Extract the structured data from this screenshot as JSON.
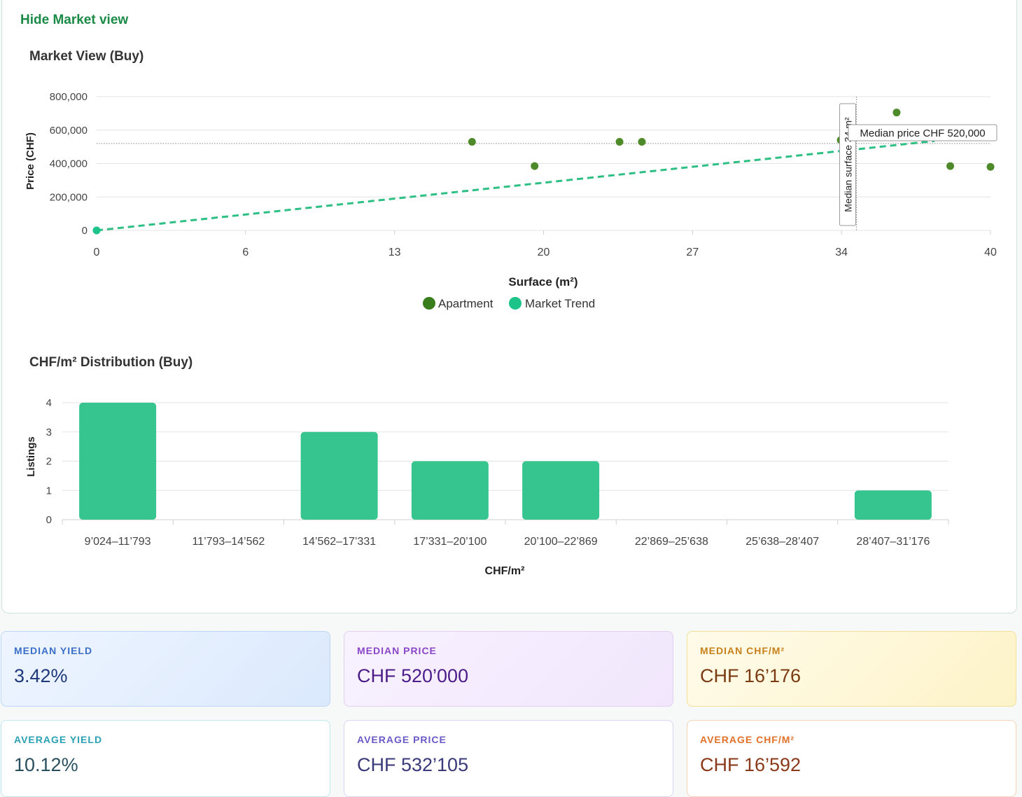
{
  "toggle": {
    "label": "Hide Market view"
  },
  "scatter": {
    "title": "Market View (Buy)",
    "ylabel": "Price (CHF)",
    "xlabel": "Surface (m²)",
    "y_ticks": [
      "0",
      "200,000",
      "400,000",
      "600,000",
      "800,000"
    ],
    "x_ticks": [
      "0",
      "6",
      "13",
      "20",
      "27",
      "34",
      "40"
    ],
    "median_surface_label": "Median surface 34 m²",
    "median_price_label": "Median price CHF 520,000",
    "legend": [
      {
        "name": "Apartment",
        "color": "#3a7d1c"
      },
      {
        "name": "Market Trend",
        "color": "#1cc48a"
      }
    ]
  },
  "histogram": {
    "title": "CHF/m² Distribution (Buy)",
    "ylabel": "Listings",
    "xlabel": "CHF/m²",
    "y_ticks": [
      "0",
      "1",
      "2",
      "3",
      "4"
    ]
  },
  "chart_data": [
    {
      "type": "scatter",
      "title": "Market View (Buy)",
      "xlabel": "Surface (m²)",
      "ylabel": "Price (CHF)",
      "xlim": [
        0,
        40
      ],
      "ylim": [
        0,
        800000
      ],
      "grid": true,
      "legend": "bottom",
      "series": [
        {
          "name": "Apartment",
          "color": "#4f8a2a",
          "points": [
            [
              16.8,
              530000
            ],
            [
              19.6,
              385000
            ],
            [
              23.4,
              530000
            ],
            [
              24.4,
              530000
            ],
            [
              33.3,
              540000
            ],
            [
              35.8,
              705000
            ],
            [
              38.2,
              385000
            ],
            [
              40,
              380000
            ]
          ]
        },
        {
          "name": "Market Trend",
          "color": "#2dbf83",
          "line": "dashed",
          "points": [
            [
              0,
              0
            ],
            [
              37.5,
              535000
            ]
          ]
        }
      ],
      "reference_lines": {
        "x": 34,
        "y": 520000
      }
    },
    {
      "type": "bar",
      "title": "CHF/m² Distribution (Buy)",
      "xlabel": "CHF/m²",
      "ylabel": "Listings",
      "categories": [
        "9’024–11’793",
        "11’793–14’562",
        "14’562–17’331",
        "17’331–20’100",
        "20’100–22’869",
        "22’869–25’638",
        "25’638–28’407",
        "28’407–31’176"
      ],
      "values": [
        4,
        0,
        3,
        2,
        2,
        0,
        0,
        1
      ],
      "ylim": [
        0,
        4
      ],
      "color": "#36c48f"
    }
  ],
  "stats": [
    {
      "label": "MEDIAN YIELD",
      "value": "3.42%"
    },
    {
      "label": "MEDIAN PRICE",
      "value": "CHF 520’000"
    },
    {
      "label": "MEDIAN CHF/M²",
      "value": "CHF 16’176"
    },
    {
      "label": "AVERAGE YIELD",
      "value": "10.12%"
    },
    {
      "label": "AVERAGE PRICE",
      "value": "CHF 532’105"
    },
    {
      "label": "AVERAGE CHF/M²",
      "value": "CHF 16’592"
    }
  ],
  "colors": {
    "accent_green": "#1a8a46",
    "bar": "#36c48f"
  }
}
